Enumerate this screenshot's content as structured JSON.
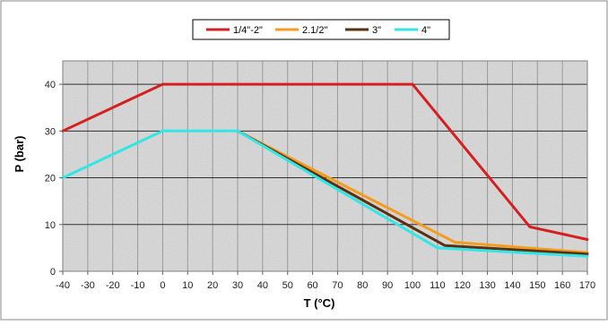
{
  "chart_data": {
    "type": "line",
    "title": "",
    "xlabel": "T (°C)",
    "ylabel": "P (bar)",
    "xlim": [
      -40,
      170
    ],
    "ylim": [
      0,
      45
    ],
    "xticks": [
      -40,
      -30,
      -20,
      -10,
      0,
      10,
      20,
      30,
      40,
      50,
      60,
      70,
      80,
      90,
      100,
      110,
      120,
      130,
      140,
      150,
      160,
      170
    ],
    "yticks": [
      0,
      10,
      20,
      30,
      40
    ],
    "grid": true,
    "legend_position": "top-center",
    "series": [
      {
        "name": "1/4\"-2\"",
        "color": "#d42020",
        "points": [
          [
            -40,
            30
          ],
          [
            0,
            40
          ],
          [
            100,
            40
          ],
          [
            147,
            9.5
          ],
          [
            170,
            6.8
          ]
        ]
      },
      {
        "name": "2.1/2\"",
        "color": "#f39c1e",
        "points": [
          [
            30,
            30
          ],
          [
            117,
            6.2
          ],
          [
            170,
            4
          ]
        ]
      },
      {
        "name": "3\"",
        "color": "#5a3010",
        "points": [
          [
            30,
            30
          ],
          [
            113,
            5.5
          ],
          [
            170,
            3.7
          ]
        ]
      },
      {
        "name": "4\"",
        "color": "#33e6e6",
        "points": [
          [
            -40,
            20
          ],
          [
            0,
            30
          ],
          [
            30,
            30
          ],
          [
            110,
            5
          ],
          [
            170,
            3.2
          ]
        ]
      }
    ]
  }
}
